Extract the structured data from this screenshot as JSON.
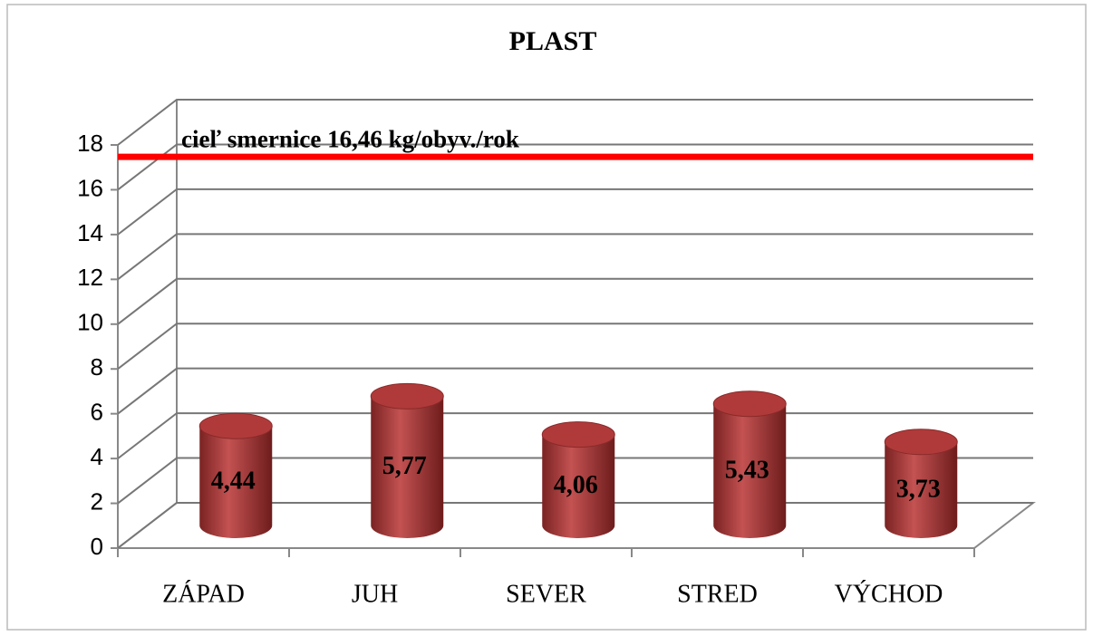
{
  "chart_data": {
    "type": "bar",
    "title": "PLAST",
    "categories": [
      "ZÁPAD",
      "JUH",
      "SEVER",
      "STRED",
      "VÝCHOD"
    ],
    "values": [
      4.44,
      5.77,
      4.06,
      5.43,
      3.73
    ],
    "value_labels": [
      "4,44",
      "5,77",
      "4,06",
      "5,43",
      "3,73"
    ],
    "color": "#b03a3a",
    "ylim": [
      0,
      18
    ],
    "yticks": [
      0,
      2,
      4,
      6,
      8,
      10,
      12,
      14,
      16,
      18
    ],
    "grid": true,
    "target": {
      "value": 16.46,
      "label": "cieľ smernice 16,46 kg/obyv./rok",
      "color": "#ff0000"
    }
  }
}
